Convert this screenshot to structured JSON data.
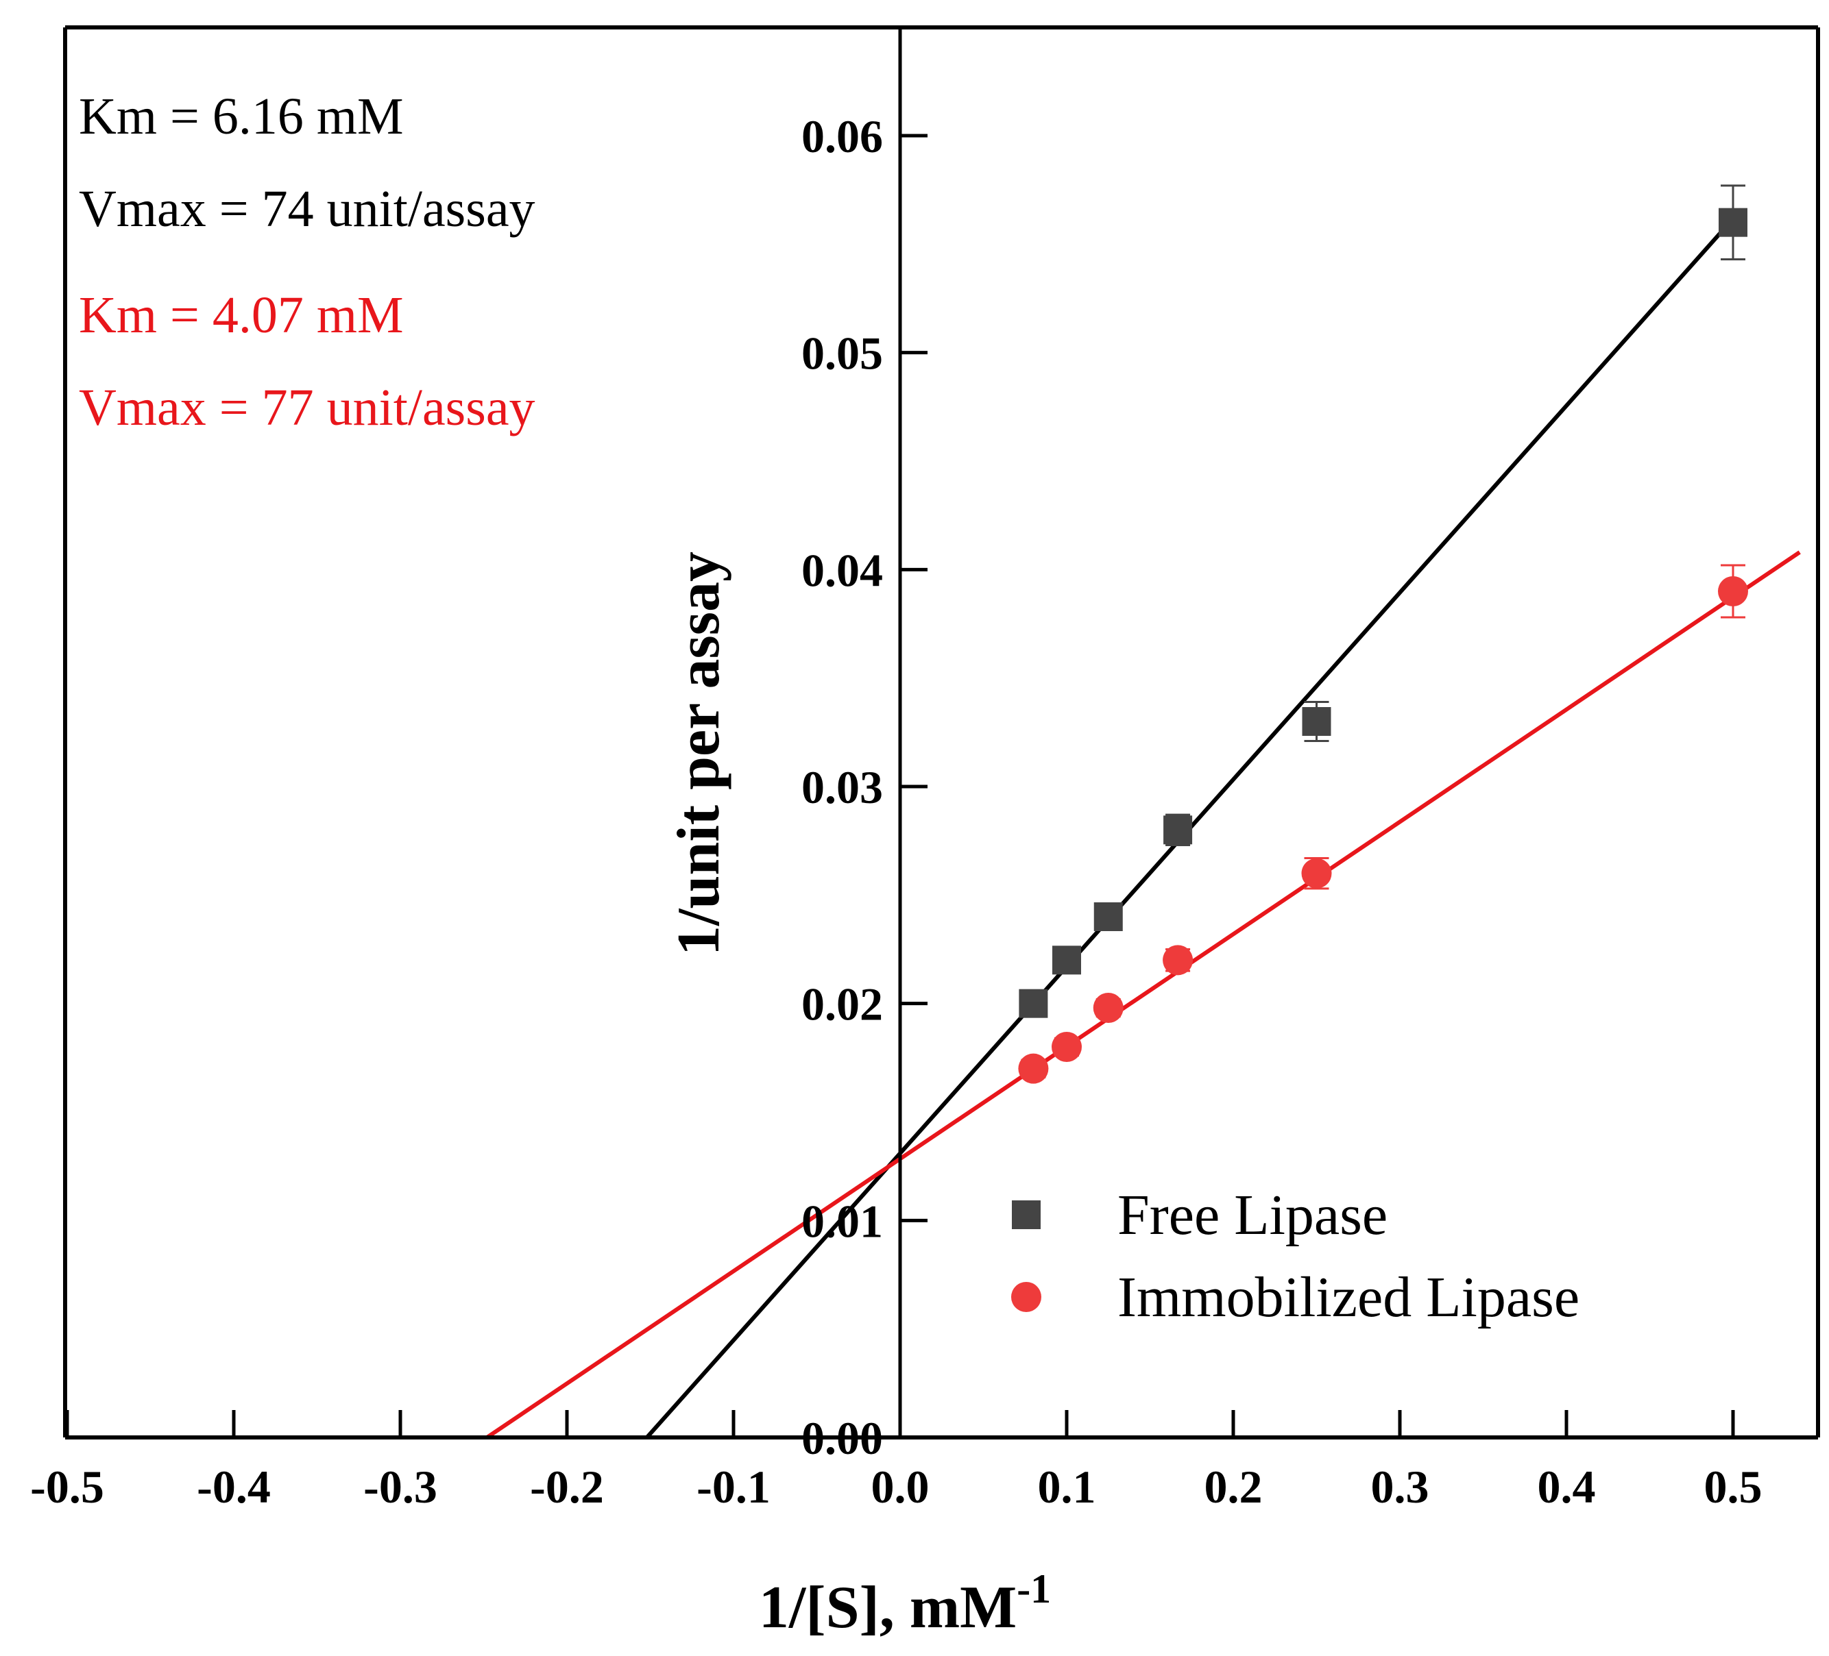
{
  "chart_data": {
    "type": "scatter",
    "title": "",
    "xlabel_main": "1/[S], mM",
    "xlabel_sup": "-1",
    "ylabel": "1/unit per assay",
    "xlim": [
      -0.5,
      0.55
    ],
    "ylim": [
      0.0,
      0.065
    ],
    "x_ticks": [
      -0.5,
      -0.4,
      -0.3,
      -0.2,
      -0.1,
      0.0,
      0.1,
      0.2,
      0.3,
      0.4,
      0.5
    ],
    "x_tick_labels": [
      "-0.5",
      "-0.4",
      "-0.3",
      "-0.2",
      "-0.1",
      "0.0",
      "0.1",
      "0.2",
      "0.3",
      "0.4",
      "0.5"
    ],
    "y_ticks": [
      0.0,
      0.01,
      0.02,
      0.03,
      0.04,
      0.05,
      0.06
    ],
    "y_tick_labels": [
      "0.00",
      "0.01",
      "0.02",
      "0.03",
      "0.04",
      "0.05",
      "0.06"
    ],
    "grid": false,
    "legend_position": "bottom-right",
    "series": [
      {
        "name": "Free Lipase",
        "marker": "square",
        "color": "#444444",
        "line_color": "#000000",
        "x": [
          0.08,
          0.1,
          0.125,
          0.1667,
          0.25,
          0.5
        ],
        "y": [
          0.02,
          0.022,
          0.024,
          0.028,
          0.033,
          0.056
        ],
        "err": [
          0.0004,
          0.0004,
          0.0004,
          0.0007,
          0.0009,
          0.0017
        ],
        "fit": {
          "x": [
            -0.152,
            0.505
          ],
          "y": [
            0.0,
            0.0566
          ]
        }
      },
      {
        "name": "Immobilized Lipase",
        "marker": "circle",
        "color": "#ee3b3b",
        "line_color": "#e8161b",
        "x": [
          0.08,
          0.1,
          0.125,
          0.1667,
          0.25,
          0.5
        ],
        "y": [
          0.017,
          0.018,
          0.0198,
          0.022,
          0.026,
          0.039
        ],
        "err": [
          0.0004,
          0.0004,
          0.0004,
          0.0005,
          0.0007,
          0.0012
        ],
        "fit": {
          "x": [
            -0.248,
            0.54
          ],
          "y": [
            0.0,
            0.0408
          ]
        }
      }
    ],
    "annotations": [
      {
        "text": "Km = 6.16 mM",
        "color": "#000000"
      },
      {
        "text": "Vmax = 74 unit/assay",
        "color": "#000000"
      },
      {
        "text": "Km = 4.07 mM",
        "color": "#e8161b"
      },
      {
        "text": "Vmax = 77 unit/assay",
        "color": "#e8161b"
      }
    ]
  }
}
